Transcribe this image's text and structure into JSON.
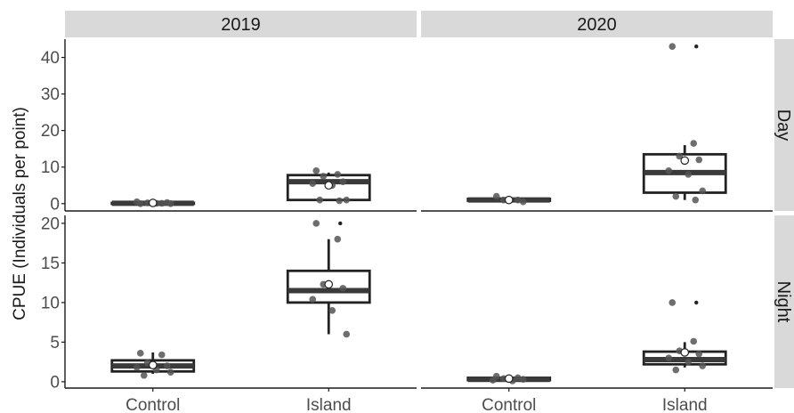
{
  "chart_data": {
    "type": "boxplot",
    "ylabel": "CPUE (Individuals per point)",
    "col_facets": [
      "2019",
      "2020"
    ],
    "row_facets": [
      "Day",
      "Night"
    ],
    "categories": [
      "Control",
      "Island"
    ],
    "panels": [
      {
        "col": "2019",
        "row": "Day",
        "ylim": [
          -2,
          45
        ],
        "yticks": [
          0,
          10,
          20,
          30,
          40
        ],
        "groups": [
          {
            "category": "Control",
            "q1": 0,
            "median": 0.1,
            "q3": 0.2,
            "whisker_low": 0,
            "whisker_high": 0.5,
            "mean": 0.2,
            "outliers": [],
            "points": [
              0,
              0.1,
              0.2,
              0.3,
              0.5,
              0.1,
              0
            ]
          },
          {
            "category": "Island",
            "q1": 1,
            "median": 6,
            "q3": 7.8,
            "whisker_low": 1,
            "whisker_high": 8.5,
            "mean": 5,
            "outliers": [],
            "points": [
              9,
              8,
              7.5,
              6,
              5.5,
              5,
              1,
              1,
              0.8
            ]
          }
        ]
      },
      {
        "col": "2020",
        "row": "Day",
        "ylim": [
          -2,
          45
        ],
        "yticks": [
          0,
          10,
          20,
          30,
          40
        ],
        "groups": [
          {
            "category": "Control",
            "q1": 0.8,
            "median": 1,
            "q3": 1.3,
            "whisker_low": 0.5,
            "whisker_high": 1.8,
            "mean": 1,
            "outliers": [],
            "points": [
              2,
              1,
              1,
              0.5
            ]
          },
          {
            "category": "Island",
            "q1": 3,
            "median": 8.5,
            "q3": 13.5,
            "whisker_low": 1,
            "whisker_high": 16,
            "mean": 11.8,
            "outliers": [
              43
            ],
            "points": [
              43,
              16.5,
              13,
              12,
              9,
              8,
              3.5,
              2,
              1
            ]
          }
        ]
      },
      {
        "col": "2019",
        "row": "Night",
        "ylim": [
          -0.8,
          21
        ],
        "yticks": [
          0,
          5,
          10,
          15,
          20
        ],
        "groups": [
          {
            "category": "Control",
            "q1": 1.3,
            "median": 2,
            "q3": 2.7,
            "whisker_low": 1,
            "whisker_high": 3.7,
            "mean": 2.1,
            "outliers": [],
            "points": [
              3.6,
              3.4,
              2.4,
              2,
              1.8,
              1.5,
              1.2,
              0.8
            ]
          },
          {
            "category": "Island",
            "q1": 10,
            "median": 11.5,
            "q3": 14,
            "whisker_low": 6,
            "whisker_high": 18,
            "mean": 12.3,
            "outliers": [
              20
            ],
            "points": [
              20,
              18,
              12.3,
              11.8,
              10.4,
              9,
              6
            ]
          }
        ]
      },
      {
        "col": "2020",
        "row": "Night",
        "ylim": [
          -0.8,
          21
        ],
        "yticks": [
          0,
          5,
          10,
          15,
          20
        ],
        "groups": [
          {
            "category": "Control",
            "q1": 0.2,
            "median": 0.3,
            "q3": 0.5,
            "whisker_low": 0,
            "whisker_high": 0.7,
            "mean": 0.4,
            "outliers": [],
            "points": [
              0.7,
              0.5,
              0.4,
              0.3,
              0.2,
              0.1
            ]
          },
          {
            "category": "Island",
            "q1": 2.2,
            "median": 2.8,
            "q3": 3.8,
            "whisker_low": 1.8,
            "whisker_high": 5,
            "mean": 3.7,
            "outliers": [
              10
            ],
            "points": [
              10,
              5.1,
              3.9,
              3.5,
              3,
              2.5,
              2,
              1.5
            ]
          }
        ]
      }
    ]
  }
}
